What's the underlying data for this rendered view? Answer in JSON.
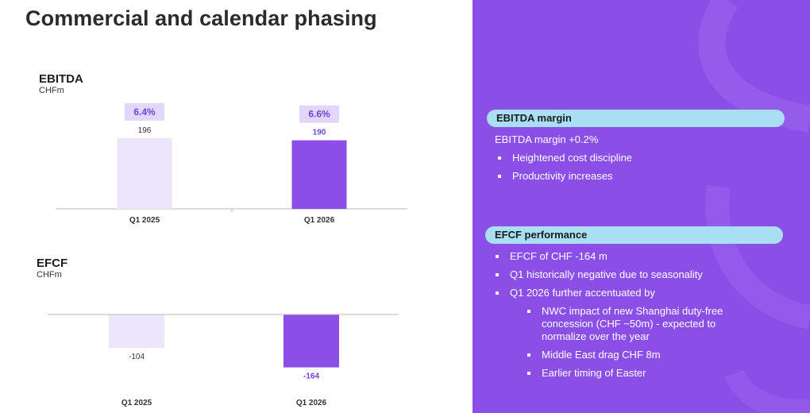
{
  "title": "Commercial and calendar phasing",
  "colors": {
    "light_bar": "#ece5fb",
    "dark_bar": "#8b4fe8",
    "panel": "#8b4fe8",
    "pill": "#a8dff2",
    "margin_box": "#e2d6fb"
  },
  "chart_data": [
    {
      "type": "bar",
      "title": "EBITDA",
      "unit": "CHFm",
      "categories": [
        "Q1 2025",
        "Q1 2026"
      ],
      "values": [
        196,
        190
      ],
      "value_labels": [
        "196",
        "190"
      ],
      "margins": [
        "6.4%",
        "6.6%"
      ],
      "ylim": [
        0,
        220
      ]
    },
    {
      "type": "bar",
      "title": "EFCF",
      "unit": "CHFm",
      "categories": [
        "Q1 2025",
        "Q1 2026"
      ],
      "values": [
        -104,
        -164
      ],
      "value_labels": [
        "-104",
        "-164"
      ],
      "ylim": [
        -170,
        0
      ]
    }
  ],
  "panel": {
    "ebitda": {
      "header": "EBITDA margin",
      "lead": "EBITDA margin +0.2%",
      "bullets": [
        "Heightened cost discipline",
        "Productivity increases"
      ]
    },
    "efcf": {
      "header": "EFCF performance",
      "bullets": [
        "EFCF of CHF -164 m",
        "Q1 historically negative due to seasonality",
        "Q1 2026 further accentuated by"
      ],
      "sub_bullets": [
        "NWC impact of new Shanghai duty-free concession (CHF ~50m) - expected to normalize over the year",
        "Middle East drag CHF 8m",
        "Earlier timing of Easter"
      ]
    }
  }
}
